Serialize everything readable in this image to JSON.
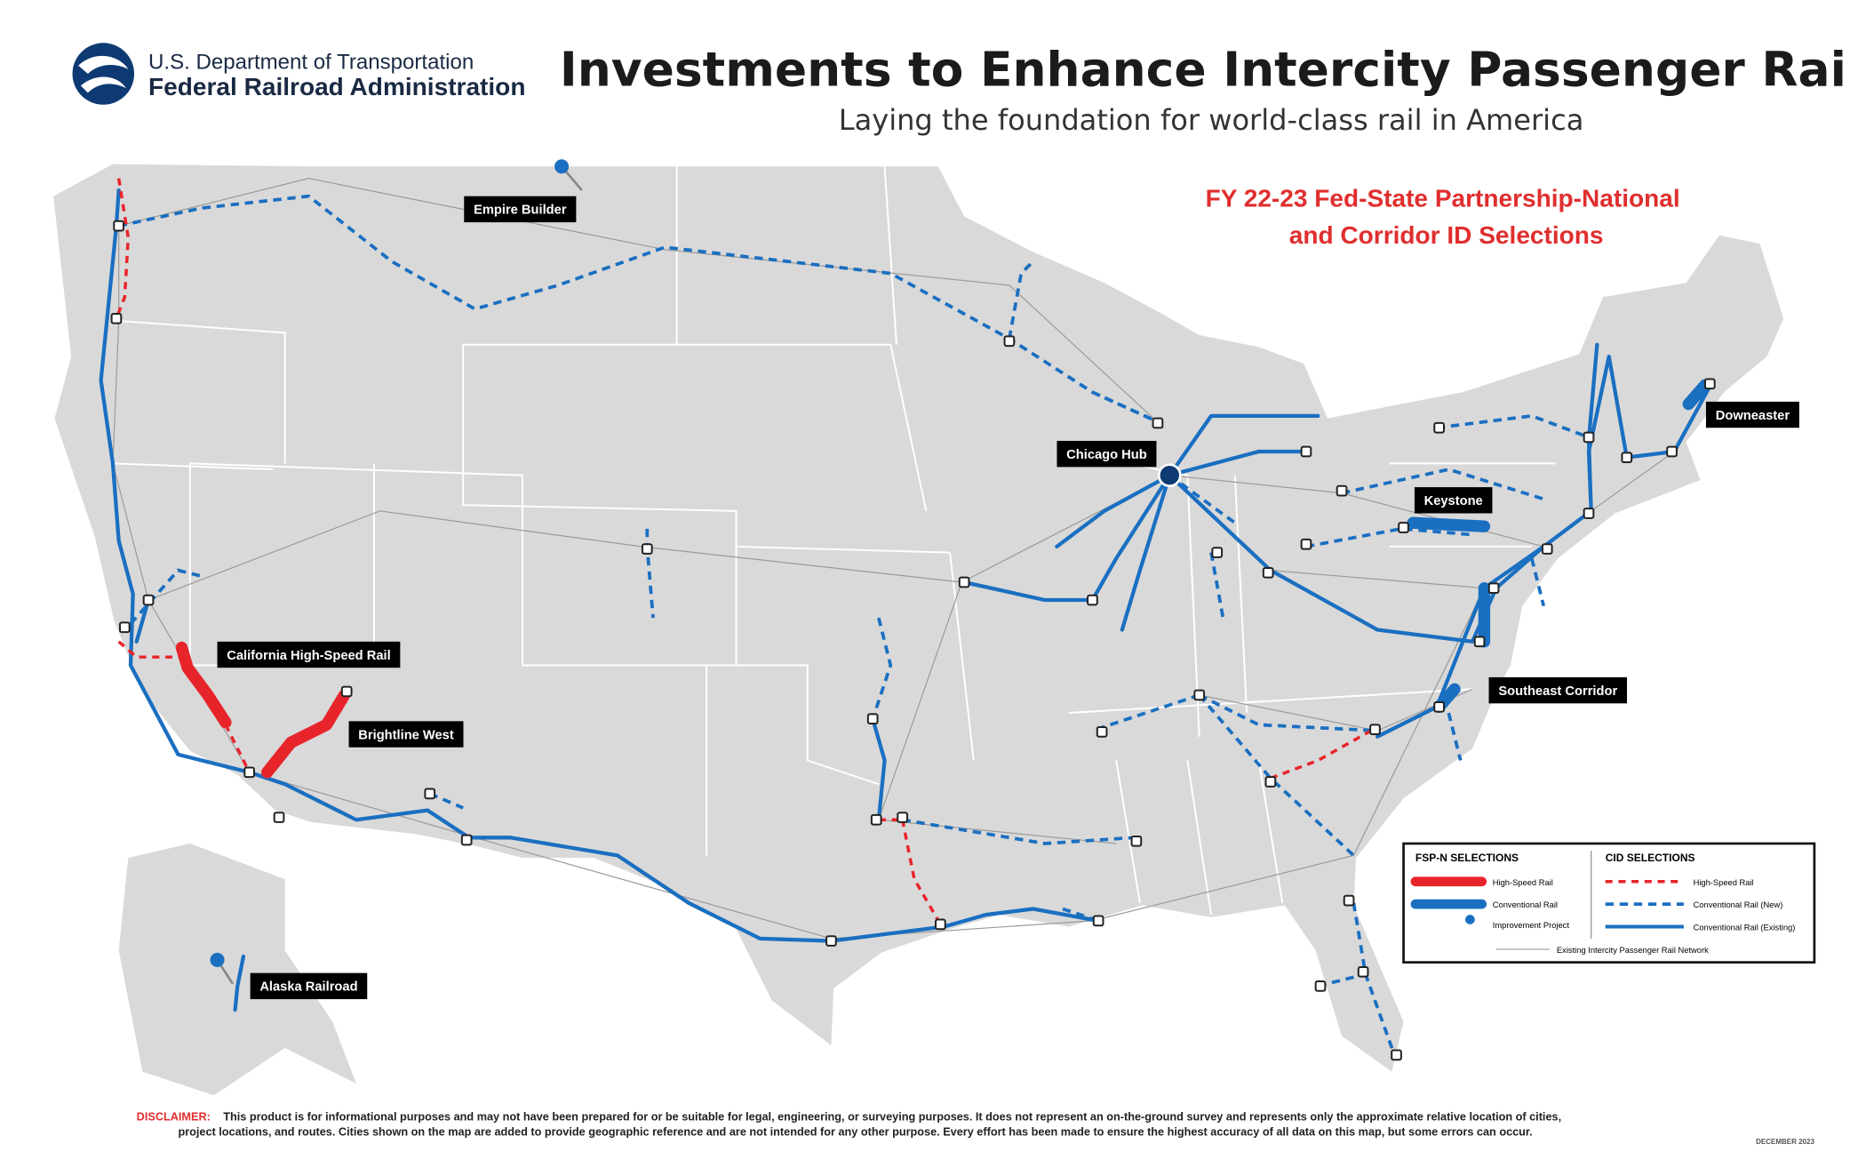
{
  "header": {
    "org_line1": "U.S. Department of Transportation",
    "org_line2": "Federal Railroad Administration",
    "title": "Investments to Enhance Intercity Passenger Rail",
    "subtitle": "Laying the foundation for world-class rail in America"
  },
  "map": {
    "heading_lines": [
      "FY 22-23 Fed-State Partnership-National",
      "and Corridor ID Selections"
    ],
    "labels": [
      "Empire Builder",
      "Chicago Hub",
      "Keystone",
      "Downeaster",
      "California High-Speed Rail",
      "Brightline West",
      "Southeast Corridor",
      "Alaska Railroad"
    ]
  },
  "legend": {
    "fsp_title": "FSP-N SELECTIONS",
    "fsp_items": [
      "High-Speed Rail",
      "Conventional Rail",
      "Improvement Project"
    ],
    "cid_title": "CID SELECTIONS",
    "cid_items": [
      "High-Speed Rail",
      "Conventional Rail (New)",
      "Conventional Rail (Existing)"
    ],
    "network": "Existing Intercity Passenger Rail Network"
  },
  "footer": {
    "disclaimer_label": "DISCLAIMER:",
    "disclaimer_lines": [
      "This product is for informational purposes and may not have been prepared for or be suitable for legal, engineering, or surveying purposes. It does not represent an on-the-ground survey and represents only the approximate relative location of cities,",
      "project locations, and routes. Cities shown on the map are added to provide geographic reference and are not intended for any other purpose. Every effort has been made to ensure the highest accuracy of all data on this map, but some errors can occur."
    ],
    "date": "DECEMBER 2023"
  }
}
